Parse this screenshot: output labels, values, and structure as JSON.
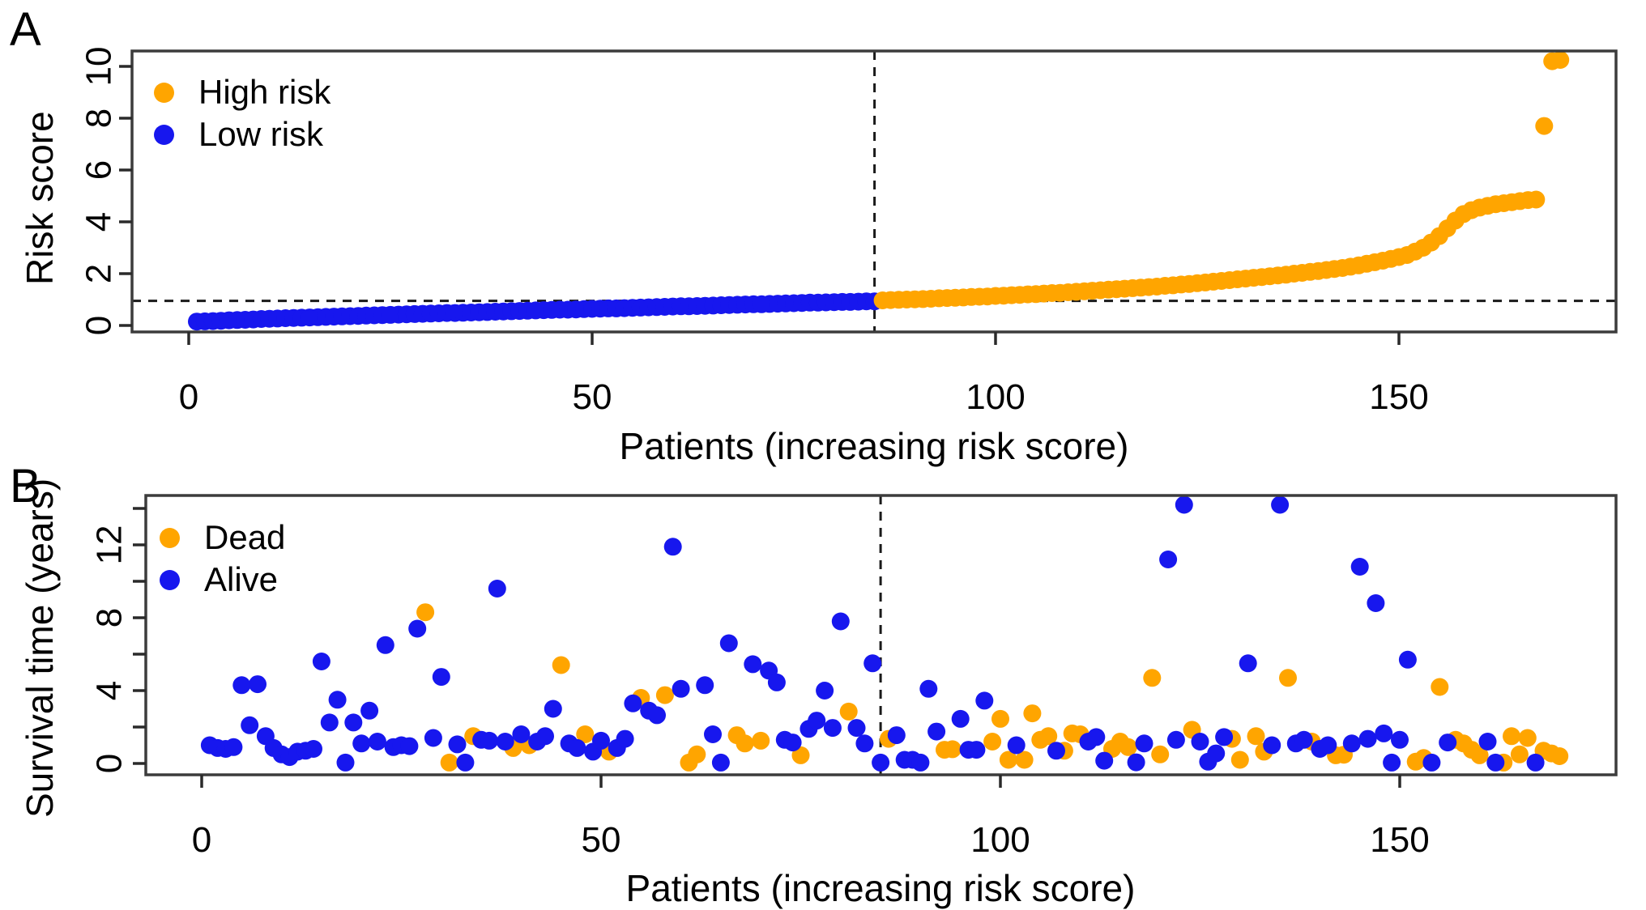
{
  "panels": [
    {
      "panel_label": "A",
      "ylabel": "Risk score",
      "xlabel": "Patients (increasing risk score)",
      "legend": [
        {
          "label": "High risk",
          "color": "#FFA500"
        },
        {
          "label": "Low risk",
          "color": "#1717EE"
        }
      ]
    },
    {
      "panel_label": "B",
      "ylabel": "Survival time (years)",
      "xlabel": "Patients (increasing risk score)",
      "legend": [
        {
          "label": "Dead",
          "color": "#FFA500"
        },
        {
          "label": "Alive",
          "color": "#1717EE"
        }
      ]
    }
  ],
  "chart_data": [
    {
      "type": "scatter",
      "panel": "A",
      "xlabel": "Patients (increasing risk score)",
      "ylabel": "Risk score",
      "xticks": [
        0,
        50,
        100,
        150
      ],
      "yticks_labeled": [
        0,
        2,
        4,
        6,
        8,
        10
      ],
      "yticks_minor": [],
      "xlim": [
        -7,
        177
      ],
      "ylim": [
        -0.3,
        10.9
      ],
      "grid": false,
      "legend_position": "top-left",
      "cutoff": {
        "patient": 85,
        "risk_score": 0.95,
        "style": "dashed"
      },
      "series": [
        {
          "name": "Low risk",
          "color": "#1717EE",
          "x_start": 1,
          "values": [
            0.15,
            0.16,
            0.17,
            0.18,
            0.2,
            0.21,
            0.22,
            0.23,
            0.25,
            0.26,
            0.27,
            0.28,
            0.29,
            0.3,
            0.31,
            0.32,
            0.33,
            0.34,
            0.35,
            0.36,
            0.37,
            0.38,
            0.39,
            0.4,
            0.41,
            0.42,
            0.43,
            0.44,
            0.45,
            0.46,
            0.47,
            0.48,
            0.48,
            0.49,
            0.5,
            0.51,
            0.52,
            0.53,
            0.54,
            0.55,
            0.56,
            0.57,
            0.58,
            0.59,
            0.6,
            0.61,
            0.61,
            0.62,
            0.63,
            0.64,
            0.65,
            0.66,
            0.66,
            0.67,
            0.68,
            0.69,
            0.7,
            0.71,
            0.72,
            0.73,
            0.74,
            0.74,
            0.75,
            0.76,
            0.77,
            0.78,
            0.79,
            0.8,
            0.81,
            0.82,
            0.82,
            0.83,
            0.84,
            0.85,
            0.86,
            0.87,
            0.88,
            0.88,
            0.89,
            0.9,
            0.91,
            0.91,
            0.92,
            0.93,
            0.93
          ]
        },
        {
          "name": "High risk",
          "color": "#FFA500",
          "x_start": 86,
          "values": [
            0.97,
            0.98,
            0.99,
            1.0,
            1.01,
            1.02,
            1.03,
            1.05,
            1.06,
            1.07,
            1.08,
            1.1,
            1.11,
            1.12,
            1.14,
            1.15,
            1.17,
            1.18,
            1.2,
            1.21,
            1.23,
            1.25,
            1.26,
            1.28,
            1.3,
            1.32,
            1.34,
            1.36,
            1.38,
            1.4,
            1.42,
            1.44,
            1.46,
            1.48,
            1.5,
            1.53,
            1.55,
            1.58,
            1.6,
            1.63,
            1.66,
            1.69,
            1.72,
            1.75,
            1.78,
            1.81,
            1.84,
            1.87,
            1.9,
            1.93,
            1.96,
            2.0,
            2.03,
            2.07,
            2.1,
            2.14,
            2.18,
            2.22,
            2.27,
            2.32,
            2.38,
            2.44,
            2.5,
            2.57,
            2.64,
            2.72,
            2.85,
            3.0,
            3.2,
            3.45,
            3.75,
            4.05,
            4.3,
            4.45,
            4.55,
            4.62,
            4.68,
            4.72,
            4.76,
            4.8,
            4.84,
            4.86,
            7.7,
            10.2,
            10.25
          ]
        }
      ]
    },
    {
      "type": "scatter",
      "panel": "B",
      "xlabel": "Patients (increasing risk score)",
      "ylabel": "Survival time (years)",
      "xticks": [
        0,
        50,
        100,
        150
      ],
      "yticks_labeled": [
        0,
        4,
        8,
        12
      ],
      "yticks_minor": [
        2,
        6,
        10,
        14
      ],
      "xlim": [
        -7,
        177
      ],
      "ylim": [
        -0.6,
        14.7
      ],
      "grid": false,
      "legend_position": "top-left",
      "cutoff": {
        "patient": 85,
        "style": "dashed"
      },
      "series": [
        {
          "name": "Dead",
          "color": "#FFA500",
          "points": [
            [
              28,
              8.3
            ],
            [
              31,
              0.05
            ],
            [
              34,
              1.5
            ],
            [
              39,
              0.85
            ],
            [
              41,
              1.0
            ],
            [
              45,
              5.4
            ],
            [
              48,
              1.6
            ],
            [
              51,
              0.65
            ],
            [
              55,
              3.6
            ],
            [
              58,
              3.75
            ],
            [
              61,
              0.05
            ],
            [
              62,
              0.5
            ],
            [
              67,
              1.55
            ],
            [
              68,
              1.1
            ],
            [
              70,
              1.25
            ],
            [
              75,
              0.45
            ],
            [
              81,
              2.85
            ],
            [
              86,
              1.35
            ],
            [
              93,
              0.75
            ],
            [
              94,
              0.78
            ],
            [
              99,
              1.2
            ],
            [
              100,
              2.45
            ],
            [
              101,
              0.2
            ],
            [
              103,
              0.2
            ],
            [
              104,
              2.75
            ],
            [
              105,
              1.3
            ],
            [
              106,
              1.5
            ],
            [
              108,
              0.7
            ],
            [
              109,
              1.65
            ],
            [
              110,
              1.6
            ],
            [
              114,
              0.8
            ],
            [
              115,
              1.2
            ],
            [
              116,
              0.9
            ],
            [
              119,
              4.7
            ],
            [
              120,
              0.5
            ],
            [
              124,
              1.85
            ],
            [
              129,
              1.35
            ],
            [
              130,
              0.2
            ],
            [
              132,
              1.5
            ],
            [
              133,
              0.65
            ],
            [
              136,
              4.7
            ],
            [
              139,
              1.2
            ],
            [
              142,
              0.45
            ],
            [
              143,
              0.48
            ],
            [
              152,
              0.1
            ],
            [
              153,
              0.3
            ],
            [
              155,
              4.2
            ],
            [
              157,
              1.3
            ],
            [
              158,
              1.1
            ],
            [
              159,
              0.75
            ],
            [
              160,
              0.45
            ],
            [
              163,
              0.05
            ],
            [
              164,
              1.5
            ],
            [
              165,
              0.5
            ],
            [
              166,
              1.4
            ],
            [
              168,
              0.7
            ],
            [
              169,
              0.55
            ],
            [
              170,
              0.4
            ]
          ]
        },
        {
          "name": "Alive",
          "color": "#1717EE",
          "points": [
            [
              1,
              1.0
            ],
            [
              2,
              0.85
            ],
            [
              3,
              0.8
            ],
            [
              4,
              0.9
            ],
            [
              5,
              4.3
            ],
            [
              6,
              2.1
            ],
            [
              7,
              4.35
            ],
            [
              8,
              1.5
            ],
            [
              9,
              0.85
            ],
            [
              10,
              0.5
            ],
            [
              11,
              0.35
            ],
            [
              12,
              0.65
            ],
            [
              13,
              0.7
            ],
            [
              14,
              0.8
            ],
            [
              15,
              5.6
            ],
            [
              16,
              2.25
            ],
            [
              17,
              3.5
            ],
            [
              18,
              0.05
            ],
            [
              19,
              2.25
            ],
            [
              20,
              1.1
            ],
            [
              21,
              2.9
            ],
            [
              22,
              1.2
            ],
            [
              23,
              6.5
            ],
            [
              24,
              0.9
            ],
            [
              25,
              1.0
            ],
            [
              26,
              0.95
            ],
            [
              27,
              7.4
            ],
            [
              29,
              1.4
            ],
            [
              30,
              4.75
            ],
            [
              32,
              1.05
            ],
            [
              33,
              0.05
            ],
            [
              35,
              1.3
            ],
            [
              36,
              1.25
            ],
            [
              37,
              9.6
            ],
            [
              38,
              1.2
            ],
            [
              40,
              1.6
            ],
            [
              42,
              1.2
            ],
            [
              43,
              1.5
            ],
            [
              44,
              3.0
            ],
            [
              46,
              1.1
            ],
            [
              47,
              0.85
            ],
            [
              49,
              0.65
            ],
            [
              50,
              1.25
            ],
            [
              52,
              0.85
            ],
            [
              53,
              1.35
            ],
            [
              54,
              3.3
            ],
            [
              56,
              2.9
            ],
            [
              57,
              2.65
            ],
            [
              59,
              11.9
            ],
            [
              60,
              4.1
            ],
            [
              63,
              4.3
            ],
            [
              64,
              1.6
            ],
            [
              65,
              0.05
            ],
            [
              66,
              6.6
            ],
            [
              69,
              5.45
            ],
            [
              71,
              5.1
            ],
            [
              72,
              4.45
            ],
            [
              73,
              1.3
            ],
            [
              74,
              1.15
            ],
            [
              76,
              1.9
            ],
            [
              77,
              2.35
            ],
            [
              78,
              4.0
            ],
            [
              79,
              1.95
            ],
            [
              80,
              7.8
            ],
            [
              82,
              1.95
            ],
            [
              83,
              1.1
            ],
            [
              84,
              5.5
            ],
            [
              85,
              0.05
            ],
            [
              87,
              1.55
            ],
            [
              88,
              0.2
            ],
            [
              89,
              0.2
            ],
            [
              90,
              0.05
            ],
            [
              91,
              4.1
            ],
            [
              92,
              1.75
            ],
            [
              95,
              2.45
            ],
            [
              96,
              0.75
            ],
            [
              97,
              0.75
            ],
            [
              98,
              3.45
            ],
            [
              102,
              1.0
            ],
            [
              107,
              0.7
            ],
            [
              111,
              1.2
            ],
            [
              112,
              1.45
            ],
            [
              113,
              0.15
            ],
            [
              117,
              0.06
            ],
            [
              118,
              1.1
            ],
            [
              121,
              11.2
            ],
            [
              122,
              1.3
            ],
            [
              123,
              14.2
            ],
            [
              125,
              1.2
            ],
            [
              126,
              0.1
            ],
            [
              127,
              0.55
            ],
            [
              128,
              1.45
            ],
            [
              131,
              5.5
            ],
            [
              134,
              1.0
            ],
            [
              135,
              14.2
            ],
            [
              137,
              1.1
            ],
            [
              138,
              1.3
            ],
            [
              140,
              0.8
            ],
            [
              141,
              1.0
            ],
            [
              144,
              1.1
            ],
            [
              145,
              10.8
            ],
            [
              146,
              1.35
            ],
            [
              147,
              8.8
            ],
            [
              148,
              1.65
            ],
            [
              149,
              0.05
            ],
            [
              150,
              1.3
            ],
            [
              151,
              5.7
            ],
            [
              154,
              0.05
            ],
            [
              156,
              1.15
            ],
            [
              161,
              1.2
            ],
            [
              162,
              0.05
            ],
            [
              167,
              0.05
            ]
          ]
        }
      ]
    }
  ]
}
